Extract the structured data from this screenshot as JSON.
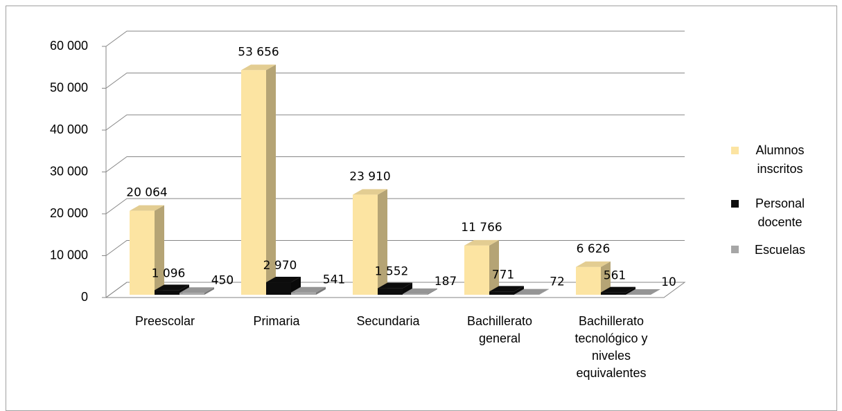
{
  "chart_data": {
    "type": "bar3d",
    "categories": [
      "Preescolar",
      "Primaria",
      "Secundaria",
      "Bachillerato general",
      "Bachillerato tecnológico y niveles equivalentes"
    ],
    "series": [
      {
        "name": "Alumnos inscritos",
        "color": "#FCE4A2",
        "values": [
          20064,
          53656,
          23910,
          11766,
          6626
        ],
        "value_labels": [
          "20 064",
          "53 656",
          "23 910",
          "11 766",
          "6 626"
        ]
      },
      {
        "name": "Personal docente",
        "color": "#0D0D0D",
        "values": [
          1096,
          2970,
          1552,
          771,
          561
        ],
        "value_labels": [
          "1 096",
          "2 970",
          "1 552",
          "771",
          "561"
        ]
      },
      {
        "name": "Escuelas",
        "color": "#A6A6A6",
        "values": [
          450,
          541,
          187,
          72,
          10
        ]
      }
    ],
    "ylim": [
      0,
      60000
    ],
    "yticks": [
      0,
      {
        "value": 10000,
        "label": "10 000"
      },
      {
        "value": 20000,
        "label": "20 000"
      },
      {
        "value": 30000,
        "label": "30 000"
      },
      {
        "value": 40000,
        "label": "40 000"
      },
      {
        "value": 50000,
        "label": "50 000"
      },
      {
        "value": 60000,
        "label": "60 000"
      }
    ],
    "grid": true,
    "legend": "right"
  }
}
